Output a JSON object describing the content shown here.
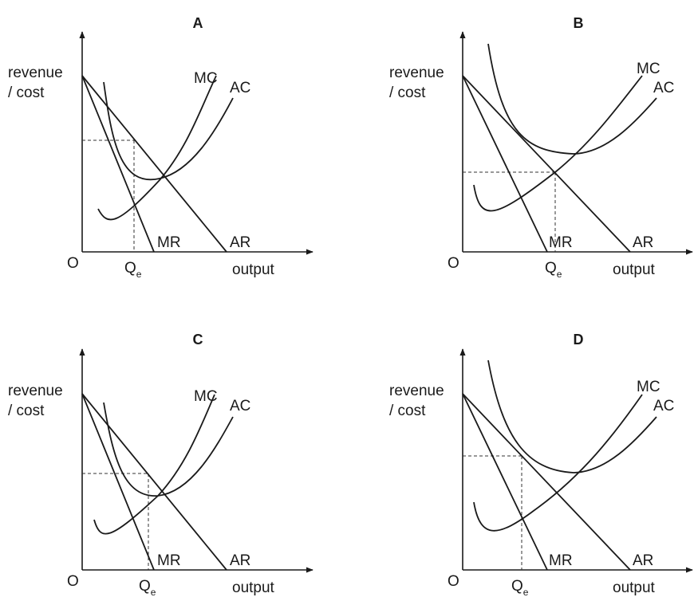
{
  "panels": [
    {
      "id": "A",
      "title": "A",
      "y_label_line1": "revenue",
      "y_label_line2": "/ cost",
      "origin_label": "O",
      "x_label": "output",
      "q_label": "Q",
      "q_sub": "e",
      "mc_label": "MC",
      "ac_label": "AC",
      "mr_label": "MR",
      "ar_label": "AR"
    },
    {
      "id": "B",
      "title": "B",
      "y_label_line1": "revenue",
      "y_label_line2": "/ cost",
      "origin_label": "O",
      "x_label": "output",
      "q_label": "Q",
      "q_sub": "e",
      "mc_label": "MC",
      "ac_label": "AC",
      "mr_label": "MR",
      "ar_label": "AR"
    },
    {
      "id": "C",
      "title": "C",
      "y_label_line1": "revenue",
      "y_label_line2": "/ cost",
      "origin_label": "O",
      "x_label": "output",
      "q_label": "Q",
      "q_sub": "e",
      "mc_label": "MC",
      "ac_label": "AC",
      "mr_label": "MR",
      "ar_label": "AR"
    },
    {
      "id": "D",
      "title": "D",
      "y_label_line1": "revenue",
      "y_label_line2": "/ cost",
      "origin_label": "O",
      "x_label": "output",
      "q_label": "Q",
      "q_sub": "e",
      "mc_label": "MC",
      "ac_label": "AC",
      "mr_label": "MR",
      "ar_label": "AR"
    }
  ]
}
